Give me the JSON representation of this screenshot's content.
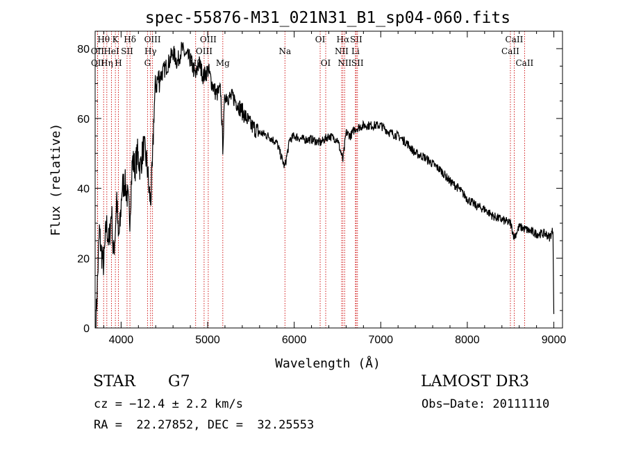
{
  "chart_data": {
    "type": "line",
    "title": "spec-55876-M31_021N31_B1_sp04-060.fits",
    "xlabel": "Wavelength (Å)",
    "ylabel": "Flux (relative)",
    "xlim": [
      3700,
      9100
    ],
    "ylim": [
      0,
      85
    ],
    "xticks": [
      4000,
      5000,
      6000,
      7000,
      8000,
      9000
    ],
    "xtick_labels": [
      "4000",
      "5000",
      "6000",
      "7000",
      "8000",
      "9000"
    ],
    "yticks": [
      0,
      20,
      40,
      60,
      80
    ],
    "ytick_labels": [
      "0",
      "20",
      "40",
      "60",
      "80"
    ],
    "grid": false,
    "series": [
      {
        "name": "flux",
        "x": [
          3710,
          3730,
          3750,
          3770,
          3800,
          3830,
          3860,
          3890,
          3910,
          3933,
          3950,
          3968,
          3990,
          4010,
          4040,
          4070,
          4101,
          4130,
          4160,
          4190,
          4220,
          4260,
          4300,
          4320,
          4340,
          4360,
          4380,
          4400,
          4450,
          4500,
          4550,
          4600,
          4650,
          4700,
          4750,
          4800,
          4861,
          4900,
          4950,
          5007,
          5050,
          5100,
          5150,
          5175,
          5200,
          5250,
          5300,
          5350,
          5400,
          5450,
          5500,
          5600,
          5700,
          5800,
          5890,
          5950,
          6000,
          6100,
          6200,
          6300,
          6400,
          6500,
          6563,
          6600,
          6650,
          6700,
          6800,
          6900,
          7000,
          7100,
          7200,
          7300,
          7400,
          7500,
          7600,
          7700,
          7800,
          7900,
          8000,
          8100,
          8200,
          8300,
          8400,
          8500,
          8542,
          8600,
          8700,
          8800,
          8900,
          8950,
          8990,
          9000
        ],
        "y": [
          2,
          15,
          28,
          22,
          18,
          30,
          24,
          34,
          20,
          28,
          38,
          25,
          30,
          40,
          42,
          38,
          32,
          48,
          46,
          50,
          46,
          52,
          47,
          40,
          36,
          45,
          62,
          70,
          72,
          74,
          76,
          79,
          76,
          80,
          78,
          77,
          72,
          76,
          72,
          74,
          70,
          67,
          68,
          52,
          67,
          66,
          66,
          64,
          62,
          60,
          58,
          56,
          55,
          53,
          46,
          54,
          55,
          54,
          54,
          53,
          55,
          54,
          48,
          56,
          55,
          57,
          58,
          58,
          58,
          56,
          55,
          53,
          50,
          49,
          47,
          45,
          42,
          40,
          37,
          35,
          34,
          32,
          31,
          30,
          26,
          29,
          28,
          27,
          27,
          26,
          28,
          4
        ]
      }
    ],
    "line_markers": [
      {
        "label": "Hθ",
        "wl": 3798,
        "row": 1
      },
      {
        "label": "OII",
        "wl": 3727,
        "row": 2
      },
      {
        "label": "OII",
        "wl": 3729,
        "row": 3
      },
      {
        "label": "Hη",
        "wl": 3835,
        "row": 3
      },
      {
        "label": "K",
        "wl": 3934,
        "row": 1
      },
      {
        "label": "HeI",
        "wl": 3889,
        "row": 2
      },
      {
        "label": "H",
        "wl": 3969,
        "row": 3
      },
      {
        "label": "Hδ",
        "wl": 4102,
        "row": 1
      },
      {
        "label": "SII",
        "wl": 4069,
        "row": 2
      },
      {
        "label": "OIII",
        "wl": 4363,
        "row": 1
      },
      {
        "label": "Hγ",
        "wl": 4340,
        "row": 2
      },
      {
        "label": "G",
        "wl": 4305,
        "row": 3
      },
      {
        "label": "OIII",
        "wl": 5007,
        "row": 1
      },
      {
        "label": "OIII",
        "wl": 4959,
        "row": 2
      },
      {
        "label": "Hβ",
        "wl": 4861,
        "row": 3
      },
      {
        "label": "Mg",
        "wl": 5175,
        "row": 3
      },
      {
        "label": "Na",
        "wl": 5893,
        "row": 2
      },
      {
        "label": "OI",
        "wl": 6300,
        "row": 1
      },
      {
        "label": "OI",
        "wl": 6364,
        "row": 3
      },
      {
        "label": "Hα",
        "wl": 6563,
        "row": 1
      },
      {
        "label": "SII",
        "wl": 6716,
        "row": 1
      },
      {
        "label": "NII",
        "wl": 6548,
        "row": 2
      },
      {
        "label": "Li",
        "wl": 6708,
        "row": 2
      },
      {
        "label": "NII",
        "wl": 6583,
        "row": 3
      },
      {
        "label": "SII",
        "wl": 6731,
        "row": 3
      },
      {
        "label": "CaII",
        "wl": 8542,
        "row": 1
      },
      {
        "label": "CaII",
        "wl": 8498,
        "row": 2
      },
      {
        "label": "CaII",
        "wl": 8662,
        "row": 3
      }
    ]
  },
  "info": {
    "class_label": "STAR",
    "subclass": "G7",
    "survey": "LAMOST DR3",
    "cz": "cz = −12.4 ± 2.2 km/s",
    "obs_date": "Obs−Date: 20111110",
    "coords": "RA =  22.27852, DEC =  32.25553"
  },
  "colors": {
    "spectrum": "#000000",
    "marker": "#cc0000",
    "axes": "#000000"
  }
}
